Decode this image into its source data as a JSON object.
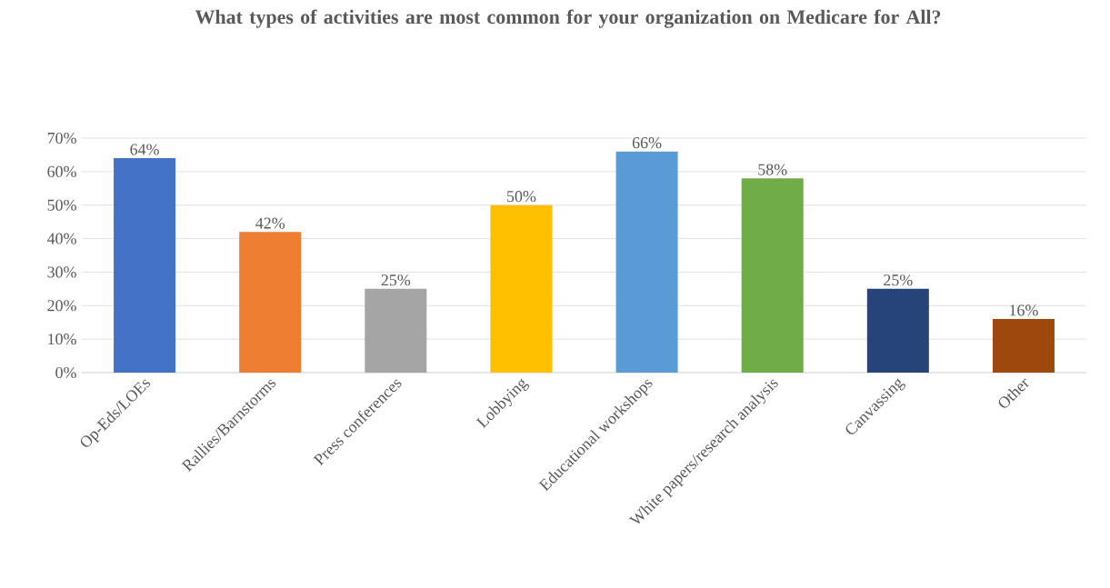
{
  "chart_data": {
    "type": "bar",
    "title": "What types of activities are most common for your organization on Medicare for All?",
    "categories": [
      "Op-Eds/LOEs",
      "Rallies/Barnstorms",
      "Press conferences",
      "Lobbying",
      "Educational workshops",
      "White papers/research analysis",
      "Canvassing",
      "Other"
    ],
    "values": [
      64,
      42,
      25,
      50,
      66,
      58,
      25,
      16
    ],
    "colors": [
      "#4472c4",
      "#ed7d31",
      "#a5a5a5",
      "#ffc000",
      "#5b9bd5",
      "#70ad47",
      "#264478",
      "#9e480e"
    ],
    "value_labels": [
      "64%",
      "42%",
      "25%",
      "50%",
      "66%",
      "58%",
      "25%",
      "16%"
    ],
    "ylim": [
      0,
      70
    ],
    "yticks": [
      {
        "value": 0,
        "label": "0%"
      },
      {
        "value": 10,
        "label": "10%"
      },
      {
        "value": 20,
        "label": "20%"
      },
      {
        "value": 30,
        "label": "30%"
      },
      {
        "value": 40,
        "label": "40%"
      },
      {
        "value": 50,
        "label": "50%"
      },
      {
        "value": 60,
        "label": "60%"
      },
      {
        "value": 70,
        "label": "70%"
      }
    ],
    "grid": "y"
  }
}
